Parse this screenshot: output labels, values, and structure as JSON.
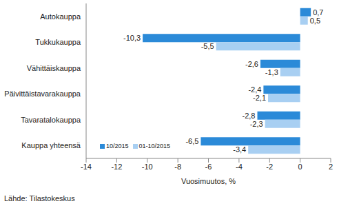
{
  "chart_data": {
    "type": "bar",
    "orientation": "horizontal",
    "categories": [
      "Autokauppa",
      "Tukkukauppa",
      "Vähittäiskauppa",
      "Päivittäistavarakauppa",
      "Tavaratalokauppa",
      "Kauppa yhteensä"
    ],
    "series": [
      {
        "name": "10/2015",
        "color": "#2b8ad8",
        "values": [
          0.7,
          -10.3,
          -2.6,
          -2.4,
          -2.8,
          -6.5
        ],
        "value_labels": [
          "0,7",
          "-10,3",
          "-2,6",
          "-2,4",
          "-2,8",
          "-6,5"
        ]
      },
      {
        "name": "01-10/2015",
        "color": "#a8cff2",
        "values": [
          0.5,
          -5.5,
          -1.3,
          -2.1,
          -2.3,
          -3.4
        ],
        "value_labels": [
          "0,5",
          "-5,5",
          "-1,3",
          "-2,1",
          "-2,3",
          "-3,4"
        ]
      }
    ],
    "xlim": [
      -14,
      2
    ],
    "xticks": [
      -14,
      -12,
      -10,
      -8,
      -6,
      -4,
      -2,
      0,
      2
    ],
    "x_label": "Vuosimuutos, %",
    "source": "Lähde: Tilastokeskus",
    "data_labels": true,
    "legend": "lower left",
    "grid": false
  }
}
